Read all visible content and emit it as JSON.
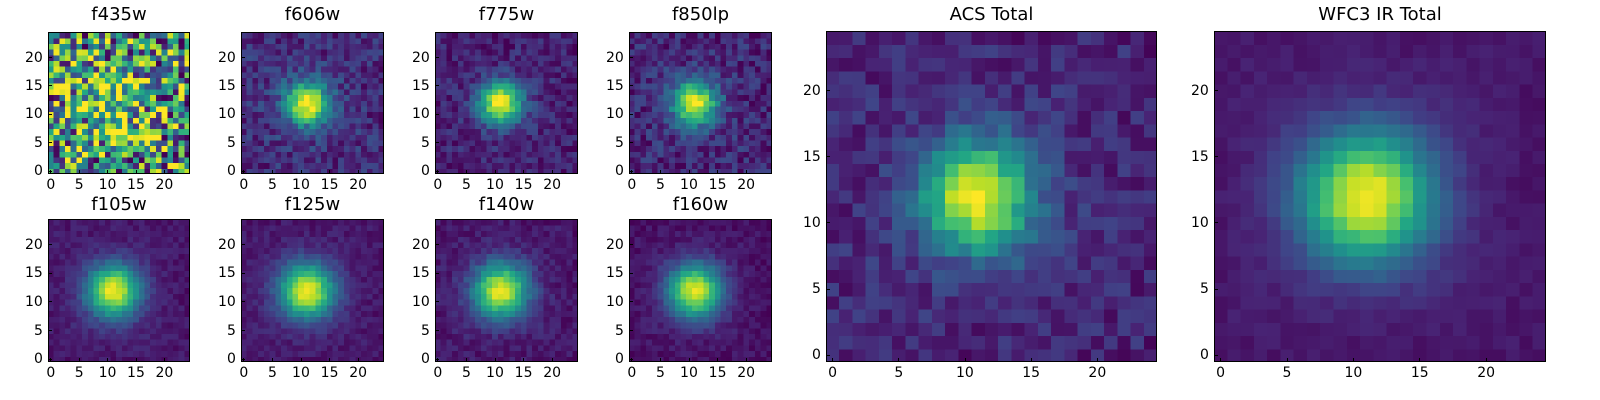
{
  "figure": {
    "panels": [
      {
        "title": "f435w"
      },
      {
        "title": "f606w"
      },
      {
        "title": "f775w"
      },
      {
        "title": "f850lp"
      },
      {
        "title": "f105w"
      },
      {
        "title": "f125w"
      },
      {
        "title": "f140w"
      },
      {
        "title": "f160w"
      },
      {
        "title": "ACS Total"
      },
      {
        "title": "WFC3 IR Total"
      }
    ]
  },
  "chart_data": [
    {
      "type": "heatmap",
      "title": "f435w",
      "grid_size": 25,
      "xlim": [
        0,
        24
      ],
      "ylim": [
        0,
        24
      ],
      "x_ticks": [
        0,
        5,
        10,
        15,
        20
      ],
      "y_ticks": [
        0,
        5,
        10,
        15,
        20
      ],
      "colormap": "viridis",
      "center": [
        11,
        12
      ],
      "peak": 0.35,
      "sigma": 4.0,
      "noise": 0.55,
      "background": 0.55
    },
    {
      "type": "heatmap",
      "title": "f606w",
      "grid_size": 25,
      "xlim": [
        0,
        24
      ],
      "ylim": [
        0,
        24
      ],
      "x_ticks": [
        0,
        5,
        10,
        15,
        20
      ],
      "y_ticks": [
        0,
        5,
        10,
        15,
        20
      ],
      "colormap": "viridis",
      "center": [
        11,
        12
      ],
      "peak": 0.85,
      "sigma": 2.6,
      "noise": 0.12,
      "background": 0.18
    },
    {
      "type": "heatmap",
      "title": "f775w",
      "grid_size": 25,
      "xlim": [
        0,
        24
      ],
      "ylim": [
        0,
        24
      ],
      "x_ticks": [
        0,
        5,
        10,
        15,
        20
      ],
      "y_ticks": [
        0,
        5,
        10,
        15,
        20
      ],
      "colormap": "viridis",
      "center": [
        11,
        12
      ],
      "peak": 0.85,
      "sigma": 2.6,
      "noise": 0.1,
      "background": 0.14
    },
    {
      "type": "heatmap",
      "title": "f850lp",
      "grid_size": 25,
      "xlim": [
        0,
        24
      ],
      "ylim": [
        0,
        24
      ],
      "x_ticks": [
        0,
        5,
        10,
        15,
        20
      ],
      "y_ticks": [
        0,
        5,
        10,
        15,
        20
      ],
      "colormap": "viridis",
      "center": [
        11,
        12
      ],
      "peak": 0.82,
      "sigma": 2.7,
      "noise": 0.12,
      "background": 0.16
    },
    {
      "type": "heatmap",
      "title": "f105w",
      "grid_size": 25,
      "xlim": [
        0,
        24
      ],
      "ylim": [
        0,
        24
      ],
      "x_ticks": [
        0,
        5,
        10,
        15,
        20
      ],
      "y_ticks": [
        0,
        5,
        10,
        15,
        20
      ],
      "colormap": "viridis",
      "center": [
        11,
        12
      ],
      "peak": 0.88,
      "sigma": 3.2,
      "noise": 0.05,
      "background": 0.12
    },
    {
      "type": "heatmap",
      "title": "f125w",
      "grid_size": 25,
      "xlim": [
        0,
        24
      ],
      "ylim": [
        0,
        24
      ],
      "x_ticks": [
        0,
        5,
        10,
        15,
        20
      ],
      "y_ticks": [
        0,
        5,
        10,
        15,
        20
      ],
      "colormap": "viridis",
      "center": [
        11,
        12
      ],
      "peak": 0.88,
      "sigma": 3.3,
      "noise": 0.05,
      "background": 0.12
    },
    {
      "type": "heatmap",
      "title": "f140w",
      "grid_size": 25,
      "xlim": [
        0,
        24
      ],
      "ylim": [
        0,
        24
      ],
      "x_ticks": [
        0,
        5,
        10,
        15,
        20
      ],
      "y_ticks": [
        0,
        5,
        10,
        15,
        20
      ],
      "colormap": "viridis",
      "center": [
        11,
        12
      ],
      "peak": 0.86,
      "sigma": 3.3,
      "noise": 0.06,
      "background": 0.12
    },
    {
      "type": "heatmap",
      "title": "f160w",
      "grid_size": 25,
      "xlim": [
        0,
        24
      ],
      "ylim": [
        0,
        24
      ],
      "x_ticks": [
        0,
        5,
        10,
        15,
        20
      ],
      "y_ticks": [
        0,
        5,
        10,
        15,
        20
      ],
      "colormap": "viridis",
      "center": [
        11,
        12
      ],
      "peak": 0.86,
      "sigma": 3.3,
      "noise": 0.05,
      "background": 0.1
    },
    {
      "type": "heatmap",
      "title": "ACS Total",
      "grid_size": 25,
      "xlim": [
        0,
        24
      ],
      "ylim": [
        0,
        24
      ],
      "x_ticks": [
        0,
        5,
        10,
        15,
        20
      ],
      "y_ticks": [
        0,
        5,
        10,
        15,
        20
      ],
      "colormap": "viridis",
      "center": [
        11,
        12
      ],
      "peak": 0.85,
      "sigma": 2.9,
      "noise": 0.09,
      "background": 0.16
    },
    {
      "type": "heatmap",
      "title": "WFC3 IR Total",
      "grid_size": 25,
      "xlim": [
        0,
        24
      ],
      "ylim": [
        0,
        24
      ],
      "x_ticks": [
        0,
        5,
        10,
        15,
        20
      ],
      "y_ticks": [
        0,
        5,
        10,
        15,
        20
      ],
      "colormap": "viridis",
      "center": [
        11,
        12
      ],
      "peak": 0.88,
      "sigma": 3.5,
      "noise": 0.03,
      "background": 0.12
    }
  ]
}
